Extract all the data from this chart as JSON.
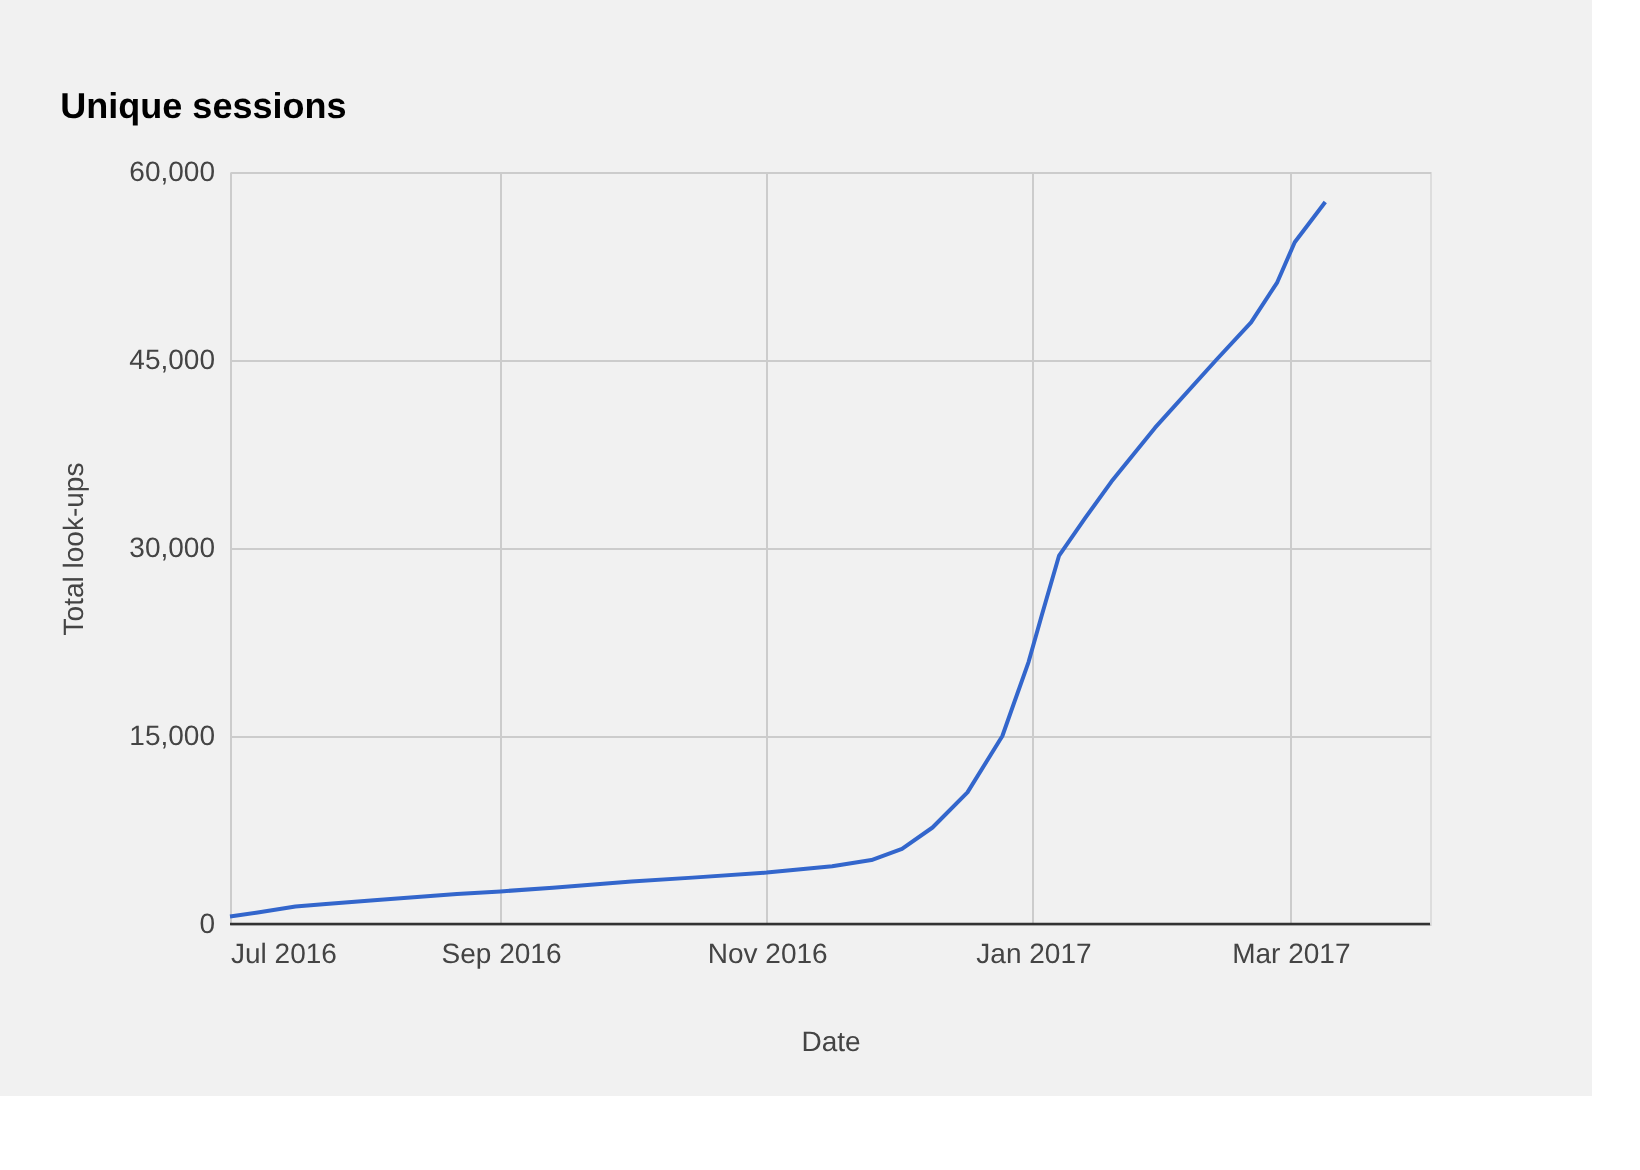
{
  "chart_data": {
    "type": "line",
    "title": "Unique sessions",
    "xlabel": "Date",
    "ylabel": "Total look-ups",
    "x": [
      "2016-07-01",
      "2016-07-07",
      "2016-07-16",
      "2016-07-23",
      "2016-08-03",
      "2016-08-22",
      "2016-09-01",
      "2016-09-13",
      "2016-10-01",
      "2016-10-15",
      "2016-11-01",
      "2016-11-16",
      "2016-11-25",
      "2016-12-02",
      "2016-12-09",
      "2016-12-17",
      "2016-12-25",
      "2016-12-31",
      "2017-01-03",
      "2017-01-07",
      "2017-01-13",
      "2017-01-19",
      "2017-01-29",
      "2017-02-12",
      "2017-02-20",
      "2017-02-26",
      "2017-03-02",
      "2017-03-09"
    ],
    "series": [
      {
        "color": "#3366cc",
        "values": [
          600,
          900,
          1400,
          1600,
          1900,
          2400,
          2600,
          2900,
          3400,
          3700,
          4100,
          4600,
          5100,
          6000,
          7700,
          10500,
          15000,
          20900,
          24600,
          29400,
          32400,
          35300,
          39600,
          45000,
          48000,
          51200,
          54400,
          57600
        ]
      }
    ],
    "xlim": [
      "2016-07-01",
      "2017-04-02"
    ],
    "xticks": [
      {
        "value": "2016-07-01",
        "label": "Jul 2016"
      },
      {
        "value": "2016-09-01",
        "label": "Sep 2016"
      },
      {
        "value": "2016-11-01",
        "label": "Nov 2016"
      },
      {
        "value": "2017-01-01",
        "label": "Jan 2017"
      },
      {
        "value": "2017-03-01",
        "label": "Mar 2017"
      }
    ],
    "ylim": [
      0,
      60000
    ],
    "yticks": [
      {
        "value": 0,
        "label": "0"
      },
      {
        "value": 15000,
        "label": "15,000"
      },
      {
        "value": 30000,
        "label": "30,000"
      },
      {
        "value": 45000,
        "label": "45,000"
      },
      {
        "value": 60000,
        "label": "60,000"
      }
    ],
    "grid": true,
    "legend": false,
    "marker": "none",
    "line_style": "solid"
  }
}
